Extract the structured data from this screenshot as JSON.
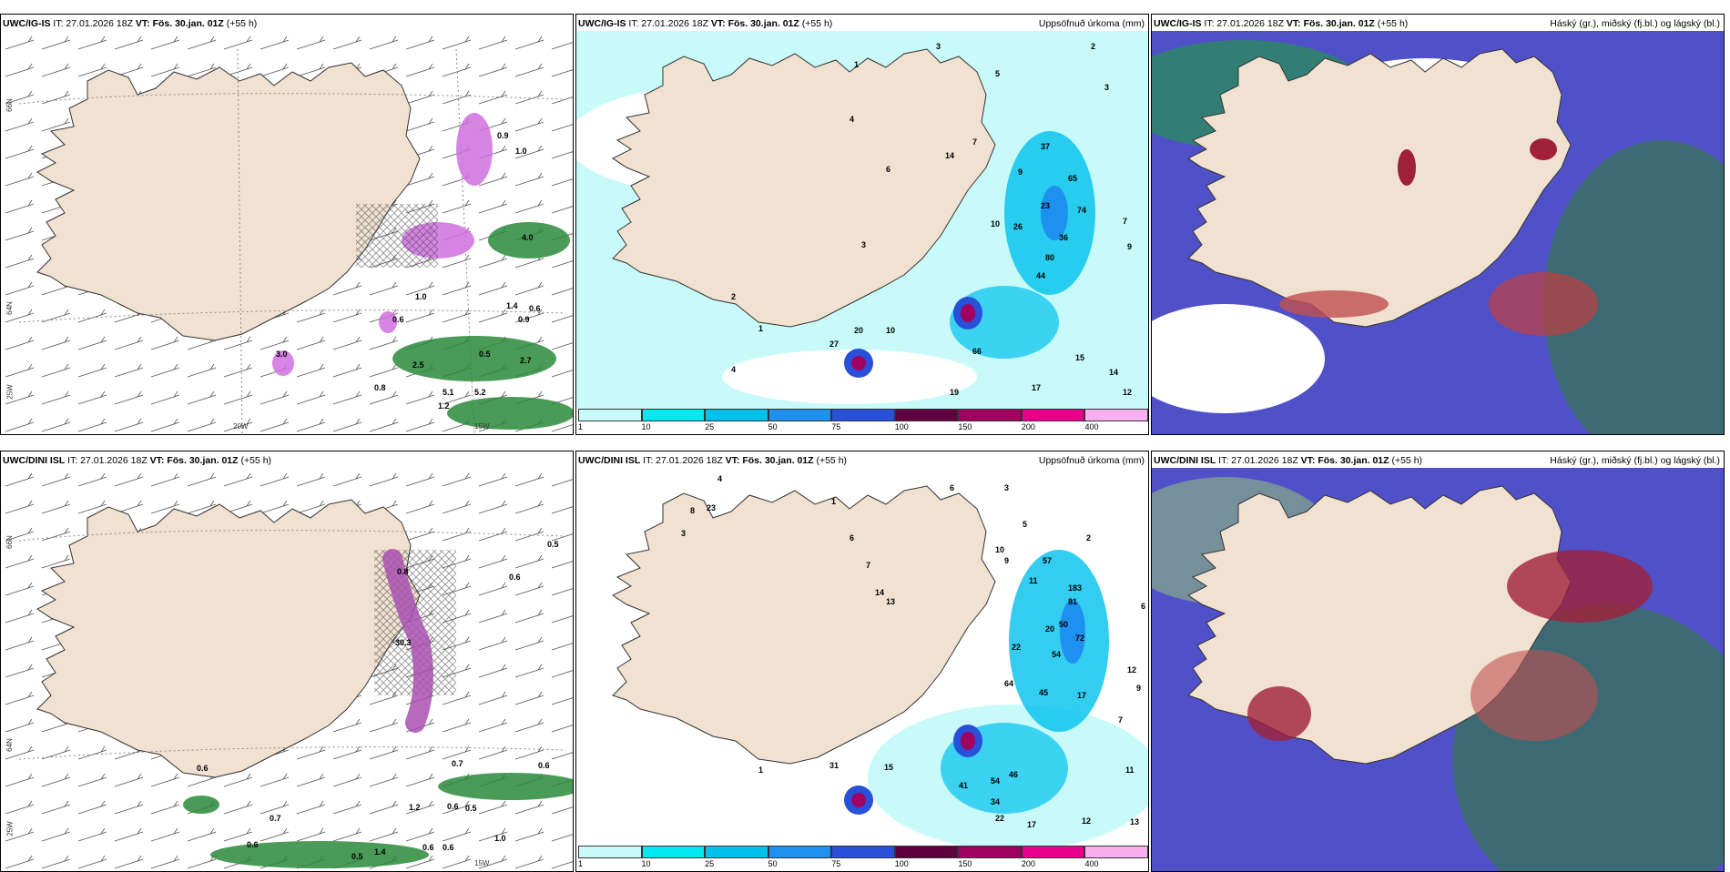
{
  "panels": {
    "p1": {
      "model": "UWC/IG-IS",
      "it": "IT: 27.01.2026 18Z",
      "vt_label": "VT:",
      "vt": "Fös. 30.jan. 01Z",
      "lead": "(+55 h)",
      "right_title": ""
    },
    "p2": {
      "model": "UWC/IG-IS",
      "it": "IT: 27.01.2026 18Z",
      "vt_label": "VT:",
      "vt": "Fös. 30.jan. 01Z",
      "lead": "(+55 h)",
      "right_title": "Uppsöfnuð úrkoma (mm)"
    },
    "p3": {
      "model": "UWC/IG-IS",
      "it": "IT: 27.01.2026 18Z",
      "vt_label": "VT:",
      "vt": "Fös. 30.jan. 01Z",
      "lead": "(+55 h)",
      "right_title": "Háský (gr.), miðský (fj.bl.) og lágský (bl.)"
    },
    "p4": {
      "model": "UWC/DINI ISL",
      "it": "IT: 27.01.2026 18Z",
      "vt_label": "VT:",
      "vt": "Fös. 30.jan. 01Z",
      "lead": "(+55 h)",
      "right_title": ""
    },
    "p5": {
      "model": "UWC/DINI ISL",
      "it": "IT: 27.01.2026 18Z",
      "vt_label": "VT:",
      "vt": "Fös. 30.jan. 01Z",
      "lead": "(+55 h)",
      "right_title": "Uppsöfnuð úrkoma (mm)"
    },
    "p6": {
      "model": "UWC/DINI ISL",
      "it": "IT: 27.01.2026 18Z",
      "vt_label": "VT:",
      "vt": "Fös. 30.jan. 01Z",
      "lead": "(+55 h)",
      "right_title": "Háský (gr.), miðský (fj.bl.) og lágský (bl.)"
    }
  },
  "axes": {
    "lat66": "66N",
    "lat64": "64N",
    "lon20": "20W",
    "lon15": "15W",
    "lon25": "25W"
  },
  "colorbar": {
    "ticks": [
      "1",
      "10",
      "25",
      "50",
      "75",
      "100",
      "150",
      "200",
      "400"
    ],
    "colors": [
      "#c8fafa",
      "#00e8f0",
      "#00c0ec",
      "#1e90f0",
      "#2850d8",
      "#600040",
      "#a00060",
      "#e8008c",
      "#f8b0f0"
    ]
  },
  "labels": {
    "p1": [
      "0.9",
      "1.0",
      "4.0",
      "1.0",
      "1.4",
      "0.6",
      "0.9",
      "0.6",
      "0.5",
      "2.5",
      "2.7",
      "0.8",
      "5.1",
      "5.2",
      "1.2",
      "3.0"
    ],
    "p2": [
      "1",
      "3",
      "5",
      "2",
      "4",
      "3",
      "3",
      "6",
      "7",
      "9",
      "10",
      "14",
      "37",
      "65",
      "74",
      "23",
      "26",
      "36",
      "80",
      "44",
      "27",
      "20",
      "10",
      "4",
      "2",
      "1",
      "19",
      "17",
      "15",
      "14",
      "12",
      "9",
      "7",
      "66"
    ],
    "p4": [
      "0.5",
      "0.6",
      "30.3",
      "0.8",
      "0.6",
      "0.7",
      "0.6",
      "0.7",
      "1.2",
      "0.6",
      "0.5",
      "0.6",
      "0.5",
      "1.4",
      "0.6",
      "0.6",
      "1.0"
    ],
    "p5": [
      "4",
      "1",
      "6",
      "3",
      "5",
      "2",
      "8",
      "23",
      "3",
      "6",
      "7",
      "14",
      "13",
      "10",
      "9",
      "11",
      "57",
      "183",
      "81",
      "50",
      "72",
      "20",
      "22",
      "54",
      "64",
      "45",
      "17",
      "7",
      "6",
      "12",
      "9",
      "11",
      "13",
      "12",
      "17",
      "22",
      "34",
      "41",
      "54",
      "46",
      "31",
      "15",
      "1"
    ]
  }
}
